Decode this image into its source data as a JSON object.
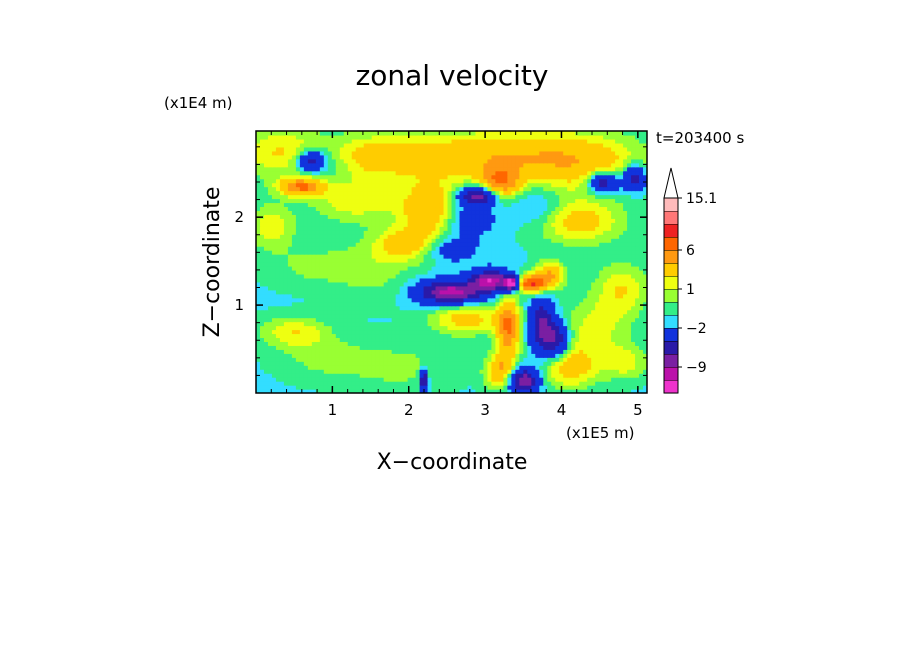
{
  "chart_data": {
    "type": "heatmap",
    "title": "zonal velocity",
    "xlabel": "X−coordinate",
    "ylabel": "Z−coordinate",
    "x_scale_label": "(x1E5 m)",
    "y_scale_label": "(x1E4 m)",
    "time_label": "t=203400 s",
    "xlim": [
      0,
      5.12
    ],
    "ylim": [
      0,
      2.98
    ],
    "x_ticks": [
      1,
      2,
      3,
      4,
      5
    ],
    "x_tick_labels": [
      "1",
      "2",
      "3",
      "4",
      "5"
    ],
    "y_ticks": [
      1,
      2
    ],
    "y_tick_labels": [
      "1",
      "2"
    ],
    "colorbar": {
      "levels": [
        -12,
        -10.5,
        -9,
        -7,
        -5,
        -2,
        -1,
        0,
        1,
        2,
        4,
        6,
        8,
        11,
        13,
        15.1
      ],
      "colors": [
        "#ee33cc",
        "#bb11aa",
        "#7a1fa2",
        "#2a1aa8",
        "#1133dd",
        "#33ddff",
        "#33ee88",
        "#99ff33",
        "#eeff11",
        "#ffcc00",
        "#ff9911",
        "#ff6600",
        "#ee2222",
        "#ff7777",
        "#ffbbbb"
      ],
      "over_color": "#ffffff",
      "labels": [
        {
          "value": 15.1,
          "text": "15.1"
        },
        {
          "value": 6,
          "text": "6"
        },
        {
          "value": 1,
          "text": "1"
        },
        {
          "value": -2,
          "text": "−2"
        },
        {
          "value": -9,
          "text": "−9"
        }
      ]
    },
    "background_value": -1.2,
    "features": [
      {
        "x": 0.72,
        "z": 2.65,
        "sx": 0.18,
        "sz": 0.11,
        "v": -6
      },
      {
        "x": 0.9,
        "z": 2.62,
        "sx": 0.35,
        "sz": 0.25,
        "v": -2
      },
      {
        "x": 0.3,
        "z": 2.75,
        "sx": 0.6,
        "sz": 0.3,
        "v": 3
      },
      {
        "x": 1.5,
        "z": 2.7,
        "sx": 0.8,
        "sz": 0.25,
        "v": 3
      },
      {
        "x": 3.1,
        "z": 2.7,
        "sx": 1.4,
        "sz": 0.3,
        "v": 4.5
      },
      {
        "x": 4.3,
        "z": 2.6,
        "sx": 0.8,
        "sz": 0.35,
        "v": 3
      },
      {
        "x": 0.6,
        "z": 2.35,
        "sx": 0.3,
        "sz": 0.1,
        "v": 7
      },
      {
        "x": 1.3,
        "z": 2.2,
        "sx": 0.6,
        "sz": 0.25,
        "v": 3
      },
      {
        "x": 2.3,
        "z": 2.1,
        "sx": 0.4,
        "sz": 0.3,
        "v": 5
      },
      {
        "x": 2.9,
        "z": 2.25,
        "sx": 0.25,
        "sz": 0.1,
        "v": -8
      },
      {
        "x": 2.75,
        "z": 2.0,
        "sx": 0.35,
        "sz": 0.2,
        "v": -3
      },
      {
        "x": 4.55,
        "z": 2.4,
        "sx": 0.2,
        "sz": 0.12,
        "v": -7
      },
      {
        "x": 4.95,
        "z": 2.45,
        "sx": 0.15,
        "sz": 0.15,
        "v": -6
      },
      {
        "x": 3.2,
        "z": 2.4,
        "sx": 0.25,
        "sz": 0.18,
        "v": 6
      },
      {
        "x": 3.7,
        "z": 2.1,
        "sx": 0.35,
        "sz": 0.25,
        "v": -2
      },
      {
        "x": 4.2,
        "z": 1.95,
        "sx": 0.6,
        "sz": 0.25,
        "v": 4
      },
      {
        "x": 2.5,
        "z": 1.65,
        "sx": 0.35,
        "sz": 0.15,
        "v": -3
      },
      {
        "x": 2.0,
        "z": 1.7,
        "sx": 0.45,
        "sz": 0.2,
        "v": 4
      },
      {
        "x": 0.2,
        "z": 1.9,
        "sx": 0.3,
        "sz": 0.25,
        "v": 3
      },
      {
        "x": 0.75,
        "z": 1.45,
        "sx": 0.6,
        "sz": 0.25,
        "v": 1.5
      },
      {
        "x": 1.55,
        "z": 1.4,
        "sx": 0.5,
        "sz": 0.35,
        "v": 1.5
      },
      {
        "x": 2.55,
        "z": 1.15,
        "sx": 0.4,
        "sz": 0.13,
        "v": -9
      },
      {
        "x": 3.08,
        "z": 1.28,
        "sx": 0.25,
        "sz": 0.12,
        "v": -9
      },
      {
        "x": 3.35,
        "z": 1.25,
        "sx": 0.1,
        "sz": 0.08,
        "v": -11
      },
      {
        "x": 3.6,
        "z": 1.25,
        "sx": 0.2,
        "sz": 0.1,
        "v": 9
      },
      {
        "x": 3.85,
        "z": 1.35,
        "sx": 0.2,
        "sz": 0.15,
        "v": 5
      },
      {
        "x": 4.8,
        "z": 1.2,
        "sx": 0.35,
        "sz": 0.3,
        "v": 3
      },
      {
        "x": 2.75,
        "z": 0.85,
        "sx": 0.45,
        "sz": 0.18,
        "v": 4
      },
      {
        "x": 3.3,
        "z": 0.75,
        "sx": 0.15,
        "sz": 0.35,
        "v": 7
      },
      {
        "x": 3.75,
        "z": 0.75,
        "sx": 0.15,
        "sz": 0.3,
        "v": -7
      },
      {
        "x": 3.95,
        "z": 0.6,
        "sx": 0.15,
        "sz": 0.2,
        "v": -6
      },
      {
        "x": 4.45,
        "z": 0.75,
        "sx": 0.45,
        "sz": 0.35,
        "v": 2.5
      },
      {
        "x": 0.5,
        "z": 0.7,
        "sx": 0.45,
        "sz": 0.18,
        "v": 3
      },
      {
        "x": 0.9,
        "z": 0.4,
        "sx": 0.6,
        "sz": 0.25,
        "v": 1.5
      },
      {
        "x": 1.9,
        "z": 0.3,
        "sx": 0.7,
        "sz": 0.3,
        "v": 1.5
      },
      {
        "x": 2.2,
        "z": 0.15,
        "sx": 0.05,
        "sz": 0.12,
        "v": -8
      },
      {
        "x": 3.5,
        "z": 0.15,
        "sx": 0.2,
        "sz": 0.15,
        "v": -8
      },
      {
        "x": 3.2,
        "z": 0.25,
        "sx": 0.2,
        "sz": 0.2,
        "v": 5
      },
      {
        "x": 4.1,
        "z": 0.3,
        "sx": 0.4,
        "sz": 0.25,
        "v": 4
      },
      {
        "x": 4.85,
        "z": 0.35,
        "sx": 0.3,
        "sz": 0.2,
        "v": 2.5
      }
    ]
  }
}
